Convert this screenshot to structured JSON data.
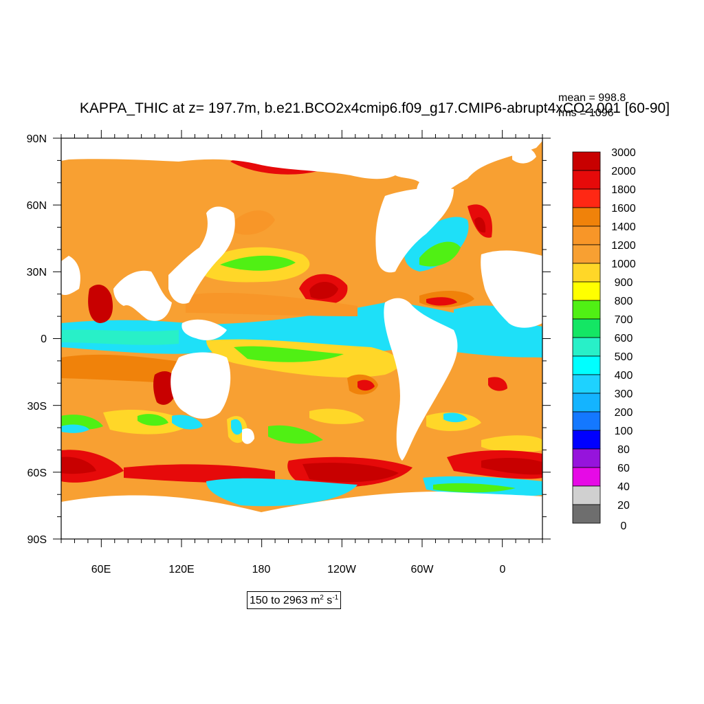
{
  "title": "KAPPA_THIC at z= 197.7m, b.e21.BCO2x4cmip6.f09_g17.CMIP6-abrupt4xCO2.001 [60-90]",
  "stats": {
    "mean": "mean = 998.8",
    "rms": "rms = 1096"
  },
  "range": {
    "text": "150 to 2963 m",
    "exp1": "2",
    "mid": " s",
    "exp2": "-1"
  },
  "colors": {
    "ocean_cyan": "#1ee0f8",
    "land": "#ffffff",
    "levels": [
      "#6e6e6e",
      "#d0d0d0",
      "#e60ae6",
      "#9614dc",
      "#0000ff",
      "#1478ff",
      "#14b4ff",
      "#1ed2ff",
      "#00ffff",
      "#28f0c8",
      "#14e664",
      "#50f014",
      "#ffff00",
      "#ffd728",
      "#f8a032",
      "#f89628",
      "#f0820a",
      "#ff2814",
      "#e60a0a",
      "#c80000"
    ]
  },
  "chart_data": {
    "type": "heatmap",
    "projection": "cylindrical-equidistant",
    "variable": "KAPPA_THIC",
    "depth": "197.7m",
    "xlim": [
      30,
      390
    ],
    "ylim": [
      -90,
      90
    ],
    "x_ticks": [
      "60E",
      "120E",
      "180",
      "120W",
      "60W",
      "0"
    ],
    "y_ticks": [
      "90N",
      "60N",
      "30N",
      "0",
      "30S",
      "60S",
      "90S"
    ],
    "colorbar_levels": [
      "3000",
      "2000",
      "1800",
      "1600",
      "1400",
      "1200",
      "1000",
      "900",
      "800",
      "700",
      "600",
      "500",
      "400",
      "300",
      "200",
      "100",
      "80",
      "60",
      "40",
      "20",
      "0"
    ],
    "mean": 998.8,
    "rms": 1096,
    "min": 150,
    "max": 2963,
    "units": "m2 s-1"
  }
}
